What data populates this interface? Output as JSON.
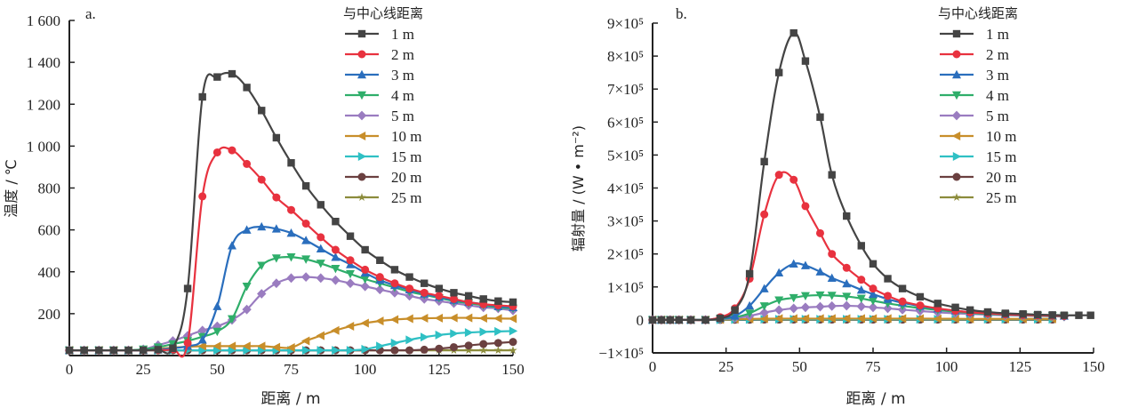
{
  "legend_title": "与中心线距离",
  "series_names": [
    "1 m",
    "2 m",
    "3 m",
    "4 m",
    "5 m",
    "10 m",
    "15 m",
    "20 m",
    "25 m"
  ],
  "series_colors": [
    "#444444",
    "#e8323f",
    "#2a6ebd",
    "#2fae6a",
    "#9a7cc0",
    "#c88e2a",
    "#2fc0c4",
    "#6b4040",
    "#8c8c3c"
  ],
  "series_markers": [
    "square",
    "circle",
    "triangle-up",
    "triangle-down",
    "diamond",
    "triangle-left",
    "triangle-right",
    "circle",
    "star"
  ],
  "chart_data": [
    {
      "type": "line",
      "panel_label": "a.",
      "title": "",
      "xlabel": "距离 / m",
      "ylabel": "温度 / ℃",
      "xlim": [
        0,
        150
      ],
      "ylim": [
        0,
        1600
      ],
      "xticks": [
        0,
        25,
        50,
        75,
        100,
        125,
        150
      ],
      "xtick_labels": [
        "0",
        "25",
        "50",
        "75",
        "100",
        "125",
        "150"
      ],
      "yticks": [
        200,
        400,
        600,
        800,
        1000,
        1200,
        1400,
        1600
      ],
      "ytick_labels": [
        "200",
        "400",
        "600",
        "800",
        "1 000",
        "1 200",
        "1 400",
        "1 600"
      ],
      "legend": "top-right",
      "grid": false,
      "x": [
        0,
        5,
        10,
        15,
        20,
        25,
        30,
        35,
        40,
        45,
        50,
        55,
        60,
        65,
        70,
        75,
        80,
        85,
        90,
        95,
        100,
        105,
        110,
        115,
        120,
        125,
        130,
        135,
        140,
        145,
        150
      ],
      "series": [
        {
          "name": "1 m",
          "values": [
            25,
            25,
            25,
            25,
            25,
            25,
            28,
            35,
            320,
            1235,
            1330,
            1345,
            1280,
            1170,
            1040,
            920,
            810,
            720,
            640,
            570,
            505,
            455,
            410,
            375,
            345,
            320,
            300,
            285,
            270,
            260,
            255
          ]
        },
        {
          "name": "2 m",
          "values": [
            25,
            25,
            25,
            25,
            25,
            25,
            26,
            30,
            60,
            760,
            970,
            980,
            915,
            840,
            755,
            695,
            630,
            565,
            505,
            455,
            410,
            375,
            345,
            320,
            300,
            285,
            270,
            255,
            245,
            240,
            235
          ]
        },
        {
          "name": "3 m",
          "values": [
            25,
            25,
            25,
            25,
            25,
            25,
            28,
            35,
            45,
            75,
            235,
            525,
            600,
            615,
            605,
            585,
            550,
            510,
            470,
            435,
            395,
            360,
            335,
            315,
            295,
            280,
            265,
            255,
            245,
            235,
            230
          ]
        },
        {
          "name": "4 m",
          "values": [
            25,
            25,
            25,
            25,
            25,
            30,
            40,
            55,
            70,
            90,
            115,
            175,
            330,
            430,
            465,
            470,
            460,
            440,
            415,
            390,
            365,
            345,
            325,
            305,
            290,
            275,
            260,
            250,
            240,
            230,
            225
          ]
        },
        {
          "name": "5 m",
          "values": [
            25,
            25,
            25,
            25,
            25,
            30,
            50,
            70,
            95,
            120,
            140,
            170,
            220,
            295,
            345,
            370,
            375,
            370,
            360,
            345,
            330,
            315,
            300,
            285,
            270,
            260,
            250,
            240,
            230,
            225,
            215
          ]
        },
        {
          "name": "10 m",
          "values": [
            25,
            25,
            25,
            25,
            25,
            28,
            32,
            38,
            42,
            45,
            45,
            45,
            45,
            45,
            40,
            38,
            70,
            95,
            120,
            140,
            155,
            165,
            172,
            176,
            178,
            179,
            180,
            180,
            178,
            177,
            176
          ]
        },
        {
          "name": "15 m",
          "values": [
            25,
            25,
            25,
            25,
            25,
            25,
            25,
            25,
            25,
            25,
            25,
            25,
            25,
            25,
            25,
            25,
            25,
            25,
            25,
            25,
            30,
            45,
            60,
            75,
            88,
            98,
            105,
            110,
            113,
            115,
            117
          ]
        },
        {
          "name": "20 m",
          "values": [
            25,
            25,
            25,
            25,
            25,
            25,
            25,
            25,
            25,
            25,
            25,
            25,
            25,
            25,
            25,
            25,
            25,
            25,
            25,
            25,
            25,
            25,
            25,
            25,
            28,
            33,
            40,
            48,
            55,
            60,
            65
          ]
        },
        {
          "name": "25 m",
          "values": [
            25,
            25,
            25,
            25,
            25,
            25,
            25,
            25,
            25,
            25,
            25,
            25,
            25,
            25,
            25,
            25,
            25,
            25,
            25,
            25,
            25,
            25,
            25,
            25,
            25,
            25,
            25,
            25,
            25,
            25,
            25
          ]
        }
      ]
    },
    {
      "type": "line",
      "panel_label": "b.",
      "title": "",
      "xlabel": "距离 / m",
      "ylabel": "辐射量 / (W • m⁻²)",
      "xlim": [
        0,
        150
      ],
      "ylim": [
        -100000,
        900000
      ],
      "xticks": [
        0,
        25,
        50,
        75,
        100,
        125,
        150
      ],
      "xtick_labels": [
        "0",
        "25",
        "50",
        "75",
        "100",
        "125",
        "150"
      ],
      "yticks": [
        -100000,
        0,
        100000,
        200000,
        300000,
        400000,
        500000,
        600000,
        700000,
        800000,
        900000
      ],
      "ytick_labels": [
        "−1×10⁵",
        "0",
        "1×10⁵",
        "2×10⁵",
        "3×10⁵",
        "4×10⁵",
        "5×10⁵",
        "6×10⁵",
        "7×10⁵",
        "8×10⁵",
        "9×10⁵"
      ],
      "legend": "top-right",
      "grid": false,
      "x": [
        0,
        3,
        6,
        9,
        13,
        18,
        23,
        28,
        33,
        38,
        43,
        48,
        52,
        57,
        61,
        66,
        71,
        75,
        80,
        85,
        91,
        97,
        103,
        108,
        114,
        120,
        126,
        131,
        136,
        140,
        145,
        149
      ],
      "series": [
        {
          "name": "1 m",
          "values": [
            0,
            0,
            0,
            0,
            0,
            0,
            5000,
            30000,
            140000,
            480000,
            750000,
            870000,
            785000,
            615000,
            440000,
            315000,
            225000,
            170000,
            125000,
            95000,
            70000,
            50000,
            38000,
            30000,
            24000,
            20000,
            18000,
            16000,
            15000,
            14000,
            14000,
            14000
          ]
        },
        {
          "name": "2 m",
          "values": [
            0,
            0,
            0,
            0,
            0,
            0,
            8000,
            35000,
            125000,
            320000,
            440000,
            425000,
            345000,
            263000,
            200000,
            158000,
            122000,
            95000,
            73000,
            56000,
            44000,
            35000,
            28000,
            23000,
            20000,
            17000,
            15000,
            14000,
            13000,
            12000,
            null,
            null
          ]
        },
        {
          "name": "3 m",
          "values": [
            0,
            0,
            0,
            0,
            0,
            0,
            5000,
            12000,
            43000,
            95000,
            143000,
            170000,
            165000,
            146000,
            127000,
            110000,
            91000,
            78000,
            63000,
            52000,
            42000,
            34000,
            28000,
            23000,
            20000,
            17000,
            15000,
            14000,
            13000,
            12000,
            null,
            null
          ]
        },
        {
          "name": "4 m",
          "values": [
            0,
            0,
            0,
            0,
            0,
            0,
            3000,
            8000,
            20000,
            42000,
            60000,
            67000,
            73000,
            75000,
            74000,
            71000,
            65000,
            58000,
            50000,
            43000,
            36000,
            30000,
            25000,
            21000,
            18000,
            16000,
            14000,
            13000,
            12000,
            11000,
            null,
            null
          ]
        },
        {
          "name": "5 m",
          "values": [
            0,
            0,
            0,
            0,
            0,
            0,
            2000,
            5000,
            12000,
            22000,
            30000,
            35000,
            38000,
            40000,
            42000,
            43000,
            41000,
            38000,
            35000,
            31000,
            27000,
            23000,
            20000,
            18000,
            16000,
            14000,
            13000,
            12000,
            11000,
            10000,
            null,
            null
          ]
        },
        {
          "name": "10 m",
          "values": [
            0,
            0,
            0,
            0,
            0,
            0,
            1000,
            2000,
            3000,
            3500,
            4000,
            4000,
            4000,
            4000,
            4000,
            4000,
            4000,
            4000,
            4000,
            4000,
            4000,
            3500,
            3500,
            3000,
            3000,
            3000,
            3000,
            3000,
            3000,
            null,
            null,
            null
          ]
        },
        {
          "name": "15 m",
          "values": [
            0,
            0,
            0,
            0,
            0,
            0,
            500,
            1000,
            1500,
            2000,
            2000,
            2000,
            2000,
            2000,
            2000,
            2000,
            2000,
            2000,
            2000,
            2000,
            2000,
            2000,
            2000,
            2000,
            2000,
            2000,
            2000,
            2000,
            2000,
            null,
            null,
            null
          ]
        },
        {
          "name": "20 m",
          "values": [
            0,
            0,
            0,
            0,
            0,
            0,
            0,
            500,
            500,
            1000,
            1000,
            1000,
            1000,
            1000,
            1000,
            1000,
            1000,
            1000,
            1000,
            1000,
            1000,
            1000,
            1000,
            1000,
            1000,
            1000,
            1000,
            1000,
            1000,
            null,
            null,
            null
          ]
        },
        {
          "name": "25 m",
          "values": [
            0,
            0,
            0,
            0,
            0,
            0,
            0,
            0,
            0,
            500,
            500,
            500,
            500,
            500,
            500,
            500,
            500,
            500,
            500,
            500,
            500,
            500,
            500,
            500,
            500,
            500,
            500,
            500,
            500,
            null,
            null,
            null
          ]
        }
      ]
    }
  ]
}
